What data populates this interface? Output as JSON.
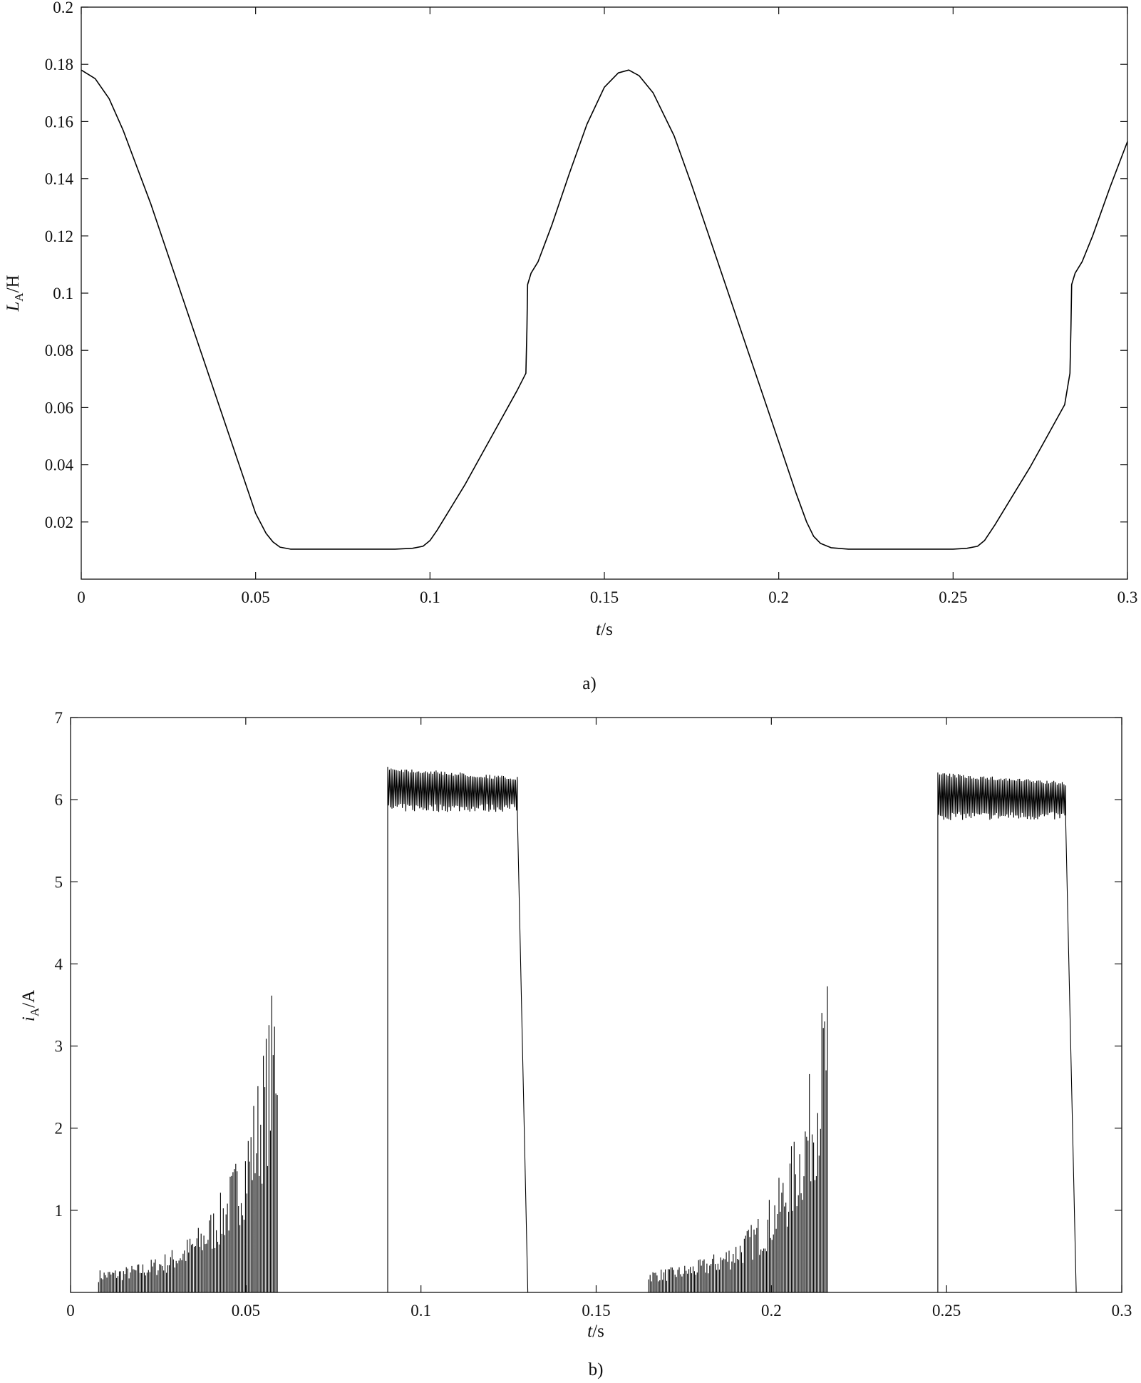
{
  "chart_data": [
    {
      "type": "line",
      "caption": "a)",
      "xlabel_italic": "t",
      "xlabel_unit": "/s",
      "ylabel_main": "L",
      "ylabel_sub": "A",
      "ylabel_unit": "/H",
      "xlim": [
        0,
        0.3
      ],
      "ylim": [
        0,
        0.2
      ],
      "x_ticks": [
        "0",
        "0.05",
        "0.1",
        "0.15",
        "0.2",
        "0.25",
        "0.3"
      ],
      "y_ticks": [
        "0.02",
        "0.04",
        "0.06",
        "0.08",
        "0.1",
        "0.12",
        "0.14",
        "0.16",
        "0.18",
        "0.2"
      ],
      "grid": false,
      "series": [
        {
          "x": [
            0,
            0.004,
            0.008,
            0.012,
            0.016,
            0.02,
            0.025,
            0.03,
            0.035,
            0.04,
            0.045,
            0.05,
            0.053,
            0.055,
            0.057,
            0.06,
            0.07,
            0.08,
            0.09,
            0.095,
            0.098,
            0.1,
            0.102,
            0.105,
            0.11,
            0.115,
            0.12,
            0.125,
            0.1275,
            0.1278,
            0.128,
            0.129,
            0.131,
            0.135,
            0.14,
            0.145,
            0.15,
            0.154,
            0.157,
            0.16,
            0.164,
            0.17,
            0.175,
            0.18,
            0.185,
            0.19,
            0.195,
            0.2,
            0.205,
            0.208,
            0.21,
            0.212,
            0.215,
            0.22,
            0.23,
            0.24,
            0.25,
            0.254,
            0.257,
            0.259,
            0.262,
            0.267,
            0.272,
            0.277,
            0.282,
            0.2835,
            0.2838,
            0.284,
            0.285,
            0.287,
            0.29,
            0.295,
            0.3
          ],
          "y": [
            0.178,
            0.175,
            0.168,
            0.157,
            0.144,
            0.131,
            0.113,
            0.095,
            0.077,
            0.059,
            0.041,
            0.023,
            0.016,
            0.013,
            0.0112,
            0.0105,
            0.0105,
            0.0105,
            0.0105,
            0.0108,
            0.0115,
            0.0135,
            0.017,
            0.023,
            0.033,
            0.044,
            0.055,
            0.066,
            0.072,
            0.088,
            0.103,
            0.107,
            0.111,
            0.124,
            0.142,
            0.159,
            0.172,
            0.177,
            0.178,
            0.176,
            0.17,
            0.155,
            0.138,
            0.12,
            0.102,
            0.084,
            0.066,
            0.048,
            0.03,
            0.02,
            0.015,
            0.0125,
            0.011,
            0.0105,
            0.0105,
            0.0105,
            0.0105,
            0.0108,
            0.0115,
            0.0135,
            0.019,
            0.029,
            0.039,
            0.05,
            0.061,
            0.072,
            0.088,
            0.103,
            0.107,
            0.111,
            0.12,
            0.137,
            0.153
          ]
        }
      ]
    },
    {
      "type": "line",
      "caption": "b)",
      "xlabel_italic": "t",
      "xlabel_unit": "/s",
      "ylabel_main": "i",
      "ylabel_sub": "A",
      "ylabel_unit": "/A",
      "xlim": [
        0,
        0.3
      ],
      "ylim": [
        0,
        7
      ],
      "x_ticks": [
        "0",
        "0.05",
        "0.1",
        "0.15",
        "0.2",
        "0.25",
        "0.3"
      ],
      "y_ticks": [
        "1",
        "2",
        "3",
        "4",
        "5",
        "6",
        "7"
      ],
      "grid": false,
      "series": [
        {
          "description_free": true,
          "chopping_bursts": [
            {
              "x_start": 0.008,
              "x_end": 0.059,
              "peak_start": 0.28,
              "peak_end": 4.2
            },
            {
              "x_start": 0.165,
              "x_end": 0.216,
              "peak_start": 0.28,
              "peak_end": 4.05
            }
          ],
          "flat_pulses": [
            {
              "x_rise": 0.0905,
              "x_fall_start": 0.1275,
              "x_fall_end": 0.1305,
              "upper": 6.4,
              "lower": 5.85,
              "upper_end": 6.28
            },
            {
              "x_rise": 0.2475,
              "x_fall_start": 0.284,
              "x_fall_end": 0.287,
              "upper": 6.33,
              "lower": 5.75,
              "upper_end": 6.22
            }
          ]
        }
      ]
    }
  ]
}
